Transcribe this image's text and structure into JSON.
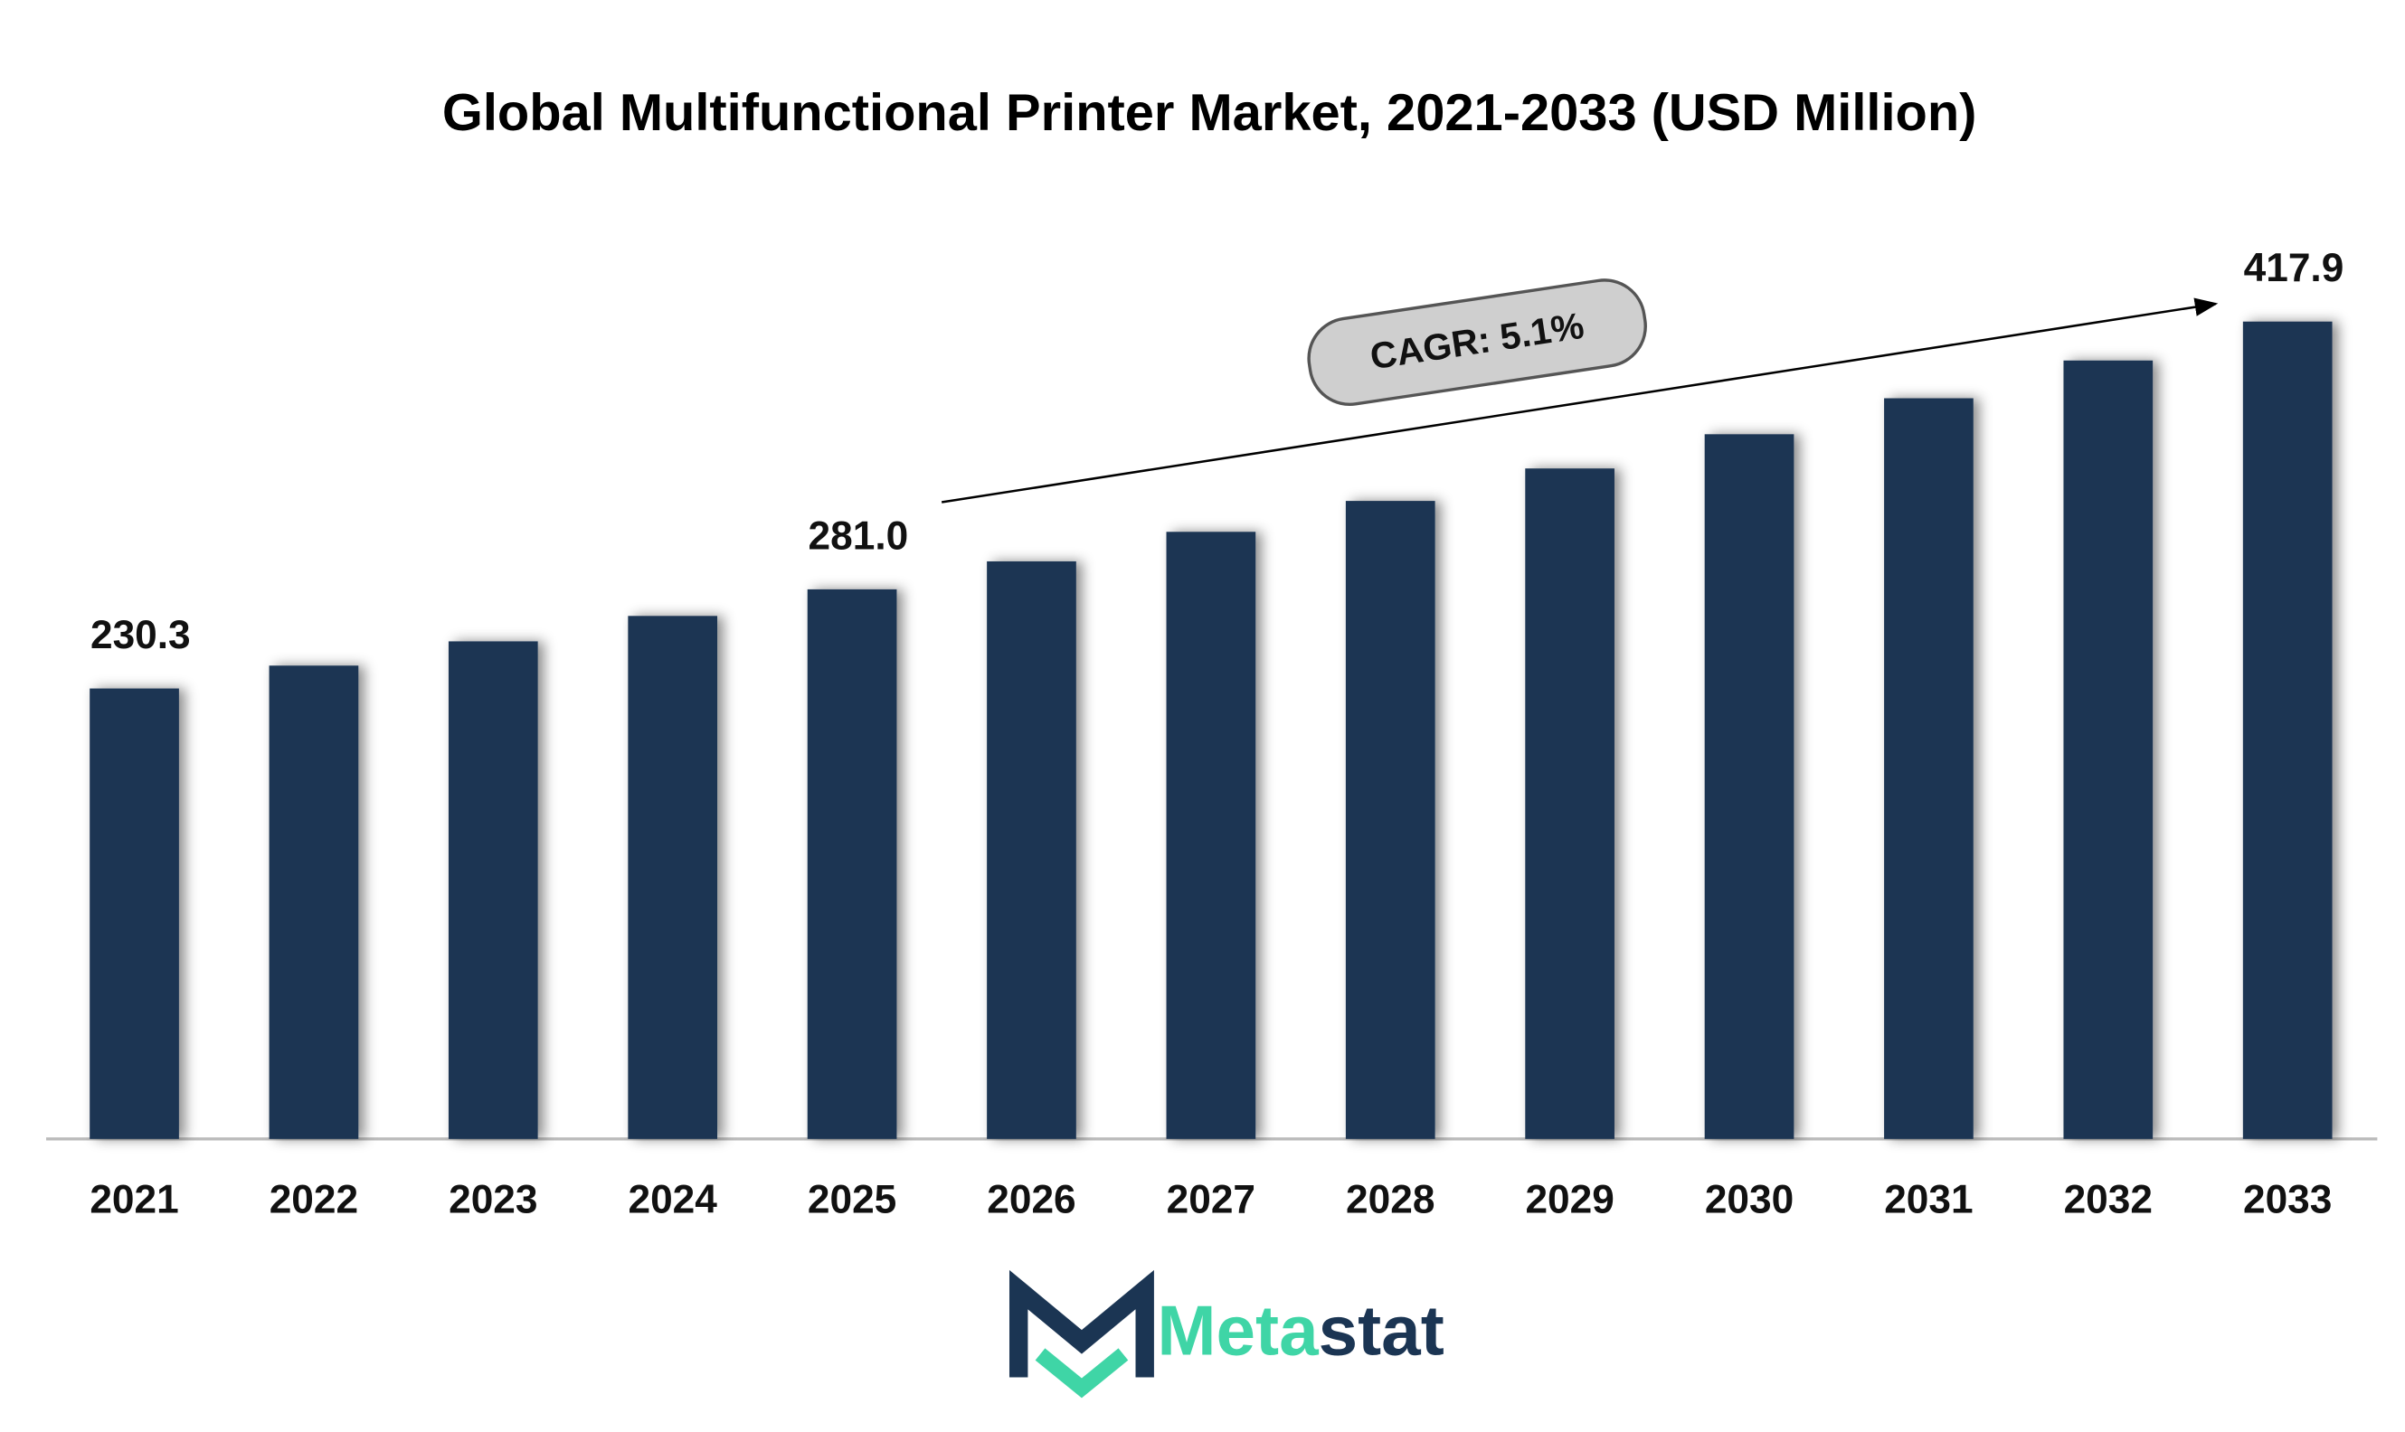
{
  "chart_data": {
    "type": "bar",
    "title": "Global Multifunctional Printer Market, 2021-2033 (USD Million)",
    "categories": [
      "2021",
      "2022",
      "2023",
      "2024",
      "2025",
      "2026",
      "2027",
      "2028",
      "2029",
      "2030",
      "2031",
      "2032",
      "2033"
    ],
    "values": [
      230.3,
      242.0,
      254.4,
      267.4,
      281.0,
      295.3,
      310.4,
      326.2,
      342.8,
      360.3,
      378.7,
      398.0,
      417.9
    ],
    "value_labels": [
      "230.3",
      null,
      null,
      null,
      "281.0",
      null,
      null,
      null,
      null,
      null,
      null,
      null,
      "417.9"
    ],
    "color": "#1b3553",
    "ylim": [
      0,
      460
    ],
    "annotation": "CAGR: 5.1%"
  },
  "brand": {
    "part1": "Meta",
    "part2": "stat"
  }
}
